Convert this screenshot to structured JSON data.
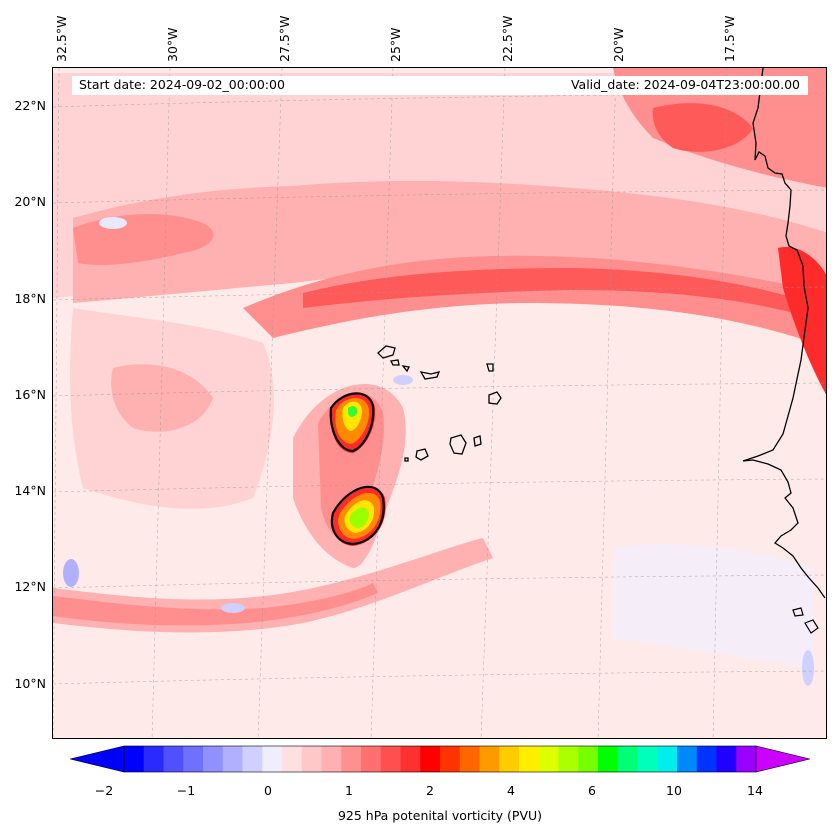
{
  "map": {
    "start_label": "Start date: 2024-09-02_00:00:00",
    "valid_label": "Valid_date: 2024-09-04T23:00:00.00",
    "lon_labels": [
      "32.5°W",
      "30°W",
      "27.5°W",
      "25°W",
      "22.5°W",
      "20°W",
      "17.5°W"
    ],
    "lat_labels": [
      "22°N",
      "20°N",
      "18°N",
      "16°N",
      "14°N",
      "12°N",
      "10°N"
    ],
    "colors": {
      "background": "#ffeaea",
      "light_pink": "#ffd3d3",
      "pink": "#ffb0b0",
      "salmon": "#ff8f8f",
      "red": "#ff5a5a",
      "deep_red": "#ff2a2a",
      "orange": "#ff8a00",
      "yellow": "#ffe600",
      "lime": "#9aff00",
      "green": "#33ff33",
      "negative_blue": "#e8e8ff"
    }
  },
  "colorbar": {
    "tick_labels": [
      "−2",
      "−1",
      "0",
      "1",
      "2",
      "4",
      "6",
      "10",
      "14"
    ],
    "title": "925 hPa potenital vorticity (PVU)",
    "colors": [
      "#0000ff",
      "#2a2aff",
      "#5050ff",
      "#7070ff",
      "#9090ff",
      "#b0b0ff",
      "#d0d0ff",
      "#eeeeff",
      "#ffe0e0",
      "#ffc8c8",
      "#ffb0b0",
      "#ff9090",
      "#ff7070",
      "#ff5050",
      "#ff3030",
      "#ff0000",
      "#ff3300",
      "#ff6600",
      "#ff9900",
      "#ffcc00",
      "#ffee00",
      "#ddff00",
      "#aaff00",
      "#77ff00",
      "#00ff00",
      "#00ff77",
      "#00ffbb",
      "#00eeee",
      "#0088ff",
      "#0033ff",
      "#2200ff",
      "#9900ff"
    ],
    "extend_min_color": "#0000ff",
    "extend_max_color": "#cc00ff"
  }
}
